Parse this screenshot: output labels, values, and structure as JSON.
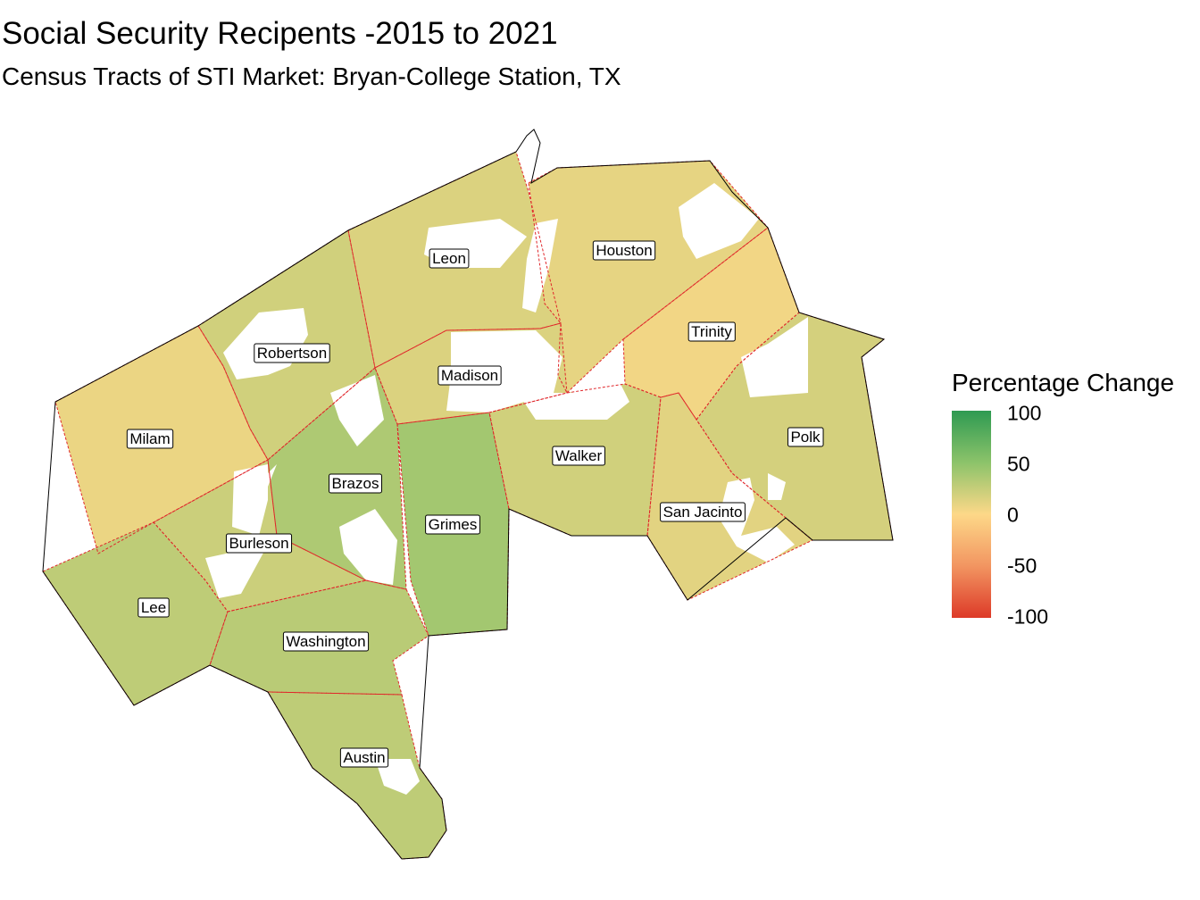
{
  "title": "Social Security Recipents -2015 to 2021",
  "subtitle": "Census Tracts of STI Market: Bryan-College Station, TX",
  "legend": {
    "title": "Percentage Change",
    "ticks": [
      "100",
      "50",
      "0",
      "-50",
      "-100"
    ],
    "colors": {
      "high": "#2e9a52",
      "mid": "#fdd888",
      "low": "#dd3a28"
    }
  },
  "counties": [
    {
      "name": "Leon",
      "change": 15
    },
    {
      "name": "Houston",
      "change": 10
    },
    {
      "name": "Trinity",
      "change": 5
    },
    {
      "name": "Robertson",
      "change": 20
    },
    {
      "name": "Madison",
      "change": 15
    },
    {
      "name": "Milam",
      "change": 8
    },
    {
      "name": "Polk",
      "change": 18
    },
    {
      "name": "Walker",
      "change": 20
    },
    {
      "name": "Brazos",
      "change": 35
    },
    {
      "name": "Grimes",
      "change": 40
    },
    {
      "name": "San Jacinto",
      "change": 12
    },
    {
      "name": "Burleson",
      "change": 22
    },
    {
      "name": "Lee",
      "change": 28
    },
    {
      "name": "Washington",
      "change": 30
    },
    {
      "name": "Austin",
      "change": 28
    }
  ]
}
